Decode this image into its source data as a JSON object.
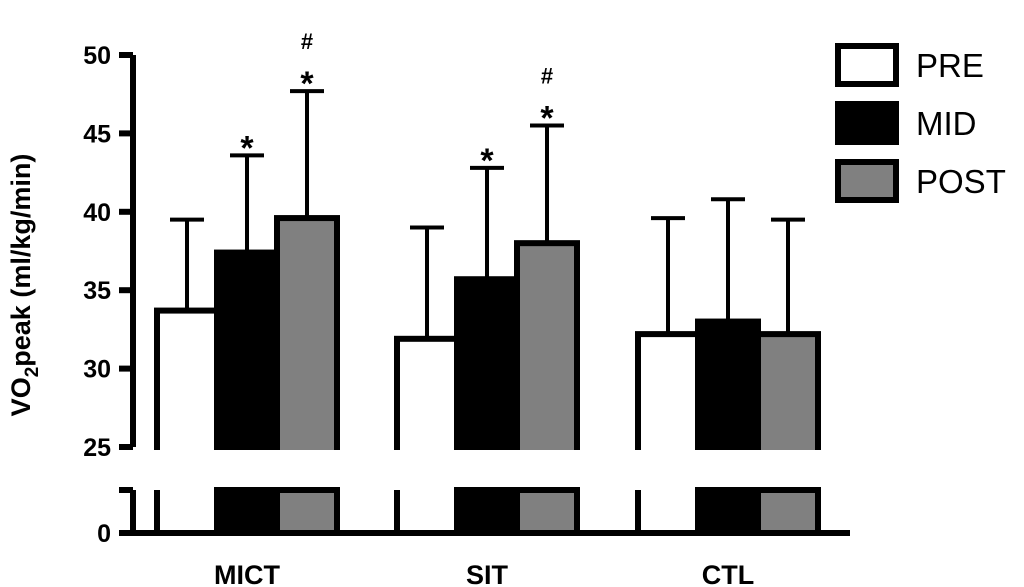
{
  "chart_data": {
    "type": "bar",
    "ylabel_main": "VO",
    "ylabel_sub": "2",
    "ylabel_rest": "peak (ml/kg/min)",
    "ylim": [
      0,
      50
    ],
    "axis_break": [
      0,
      25
    ],
    "yticks": [
      "0",
      "25",
      "30",
      "35",
      "40",
      "45",
      "50"
    ],
    "categories": [
      "MICT",
      "SIT",
      "CTL"
    ],
    "series": [
      {
        "name": "PRE",
        "color": "#ffffff",
        "values": [
          33.7,
          31.9,
          32.2
        ],
        "error": [
          5.8,
          7.1,
          7.4
        ]
      },
      {
        "name": "MID",
        "color": "#000000",
        "values": [
          37.4,
          35.7,
          33.0
        ],
        "error": [
          6.2,
          7.1,
          7.8
        ]
      },
      {
        "name": "POST",
        "color": "#808080",
        "values": [
          39.6,
          38.0,
          32.2
        ],
        "error": [
          8.1,
          7.5,
          7.3
        ]
      }
    ],
    "annotations": [
      {
        "category": "MICT",
        "series": "MID",
        "marks": [
          "*"
        ]
      },
      {
        "category": "MICT",
        "series": "POST",
        "marks": [
          "#",
          "*"
        ]
      },
      {
        "category": "SIT",
        "series": "MID",
        "marks": [
          "*"
        ]
      },
      {
        "category": "SIT",
        "series": "POST",
        "marks": [
          "#",
          "*"
        ]
      }
    ],
    "legend_position": "top-right",
    "grid": false
  }
}
